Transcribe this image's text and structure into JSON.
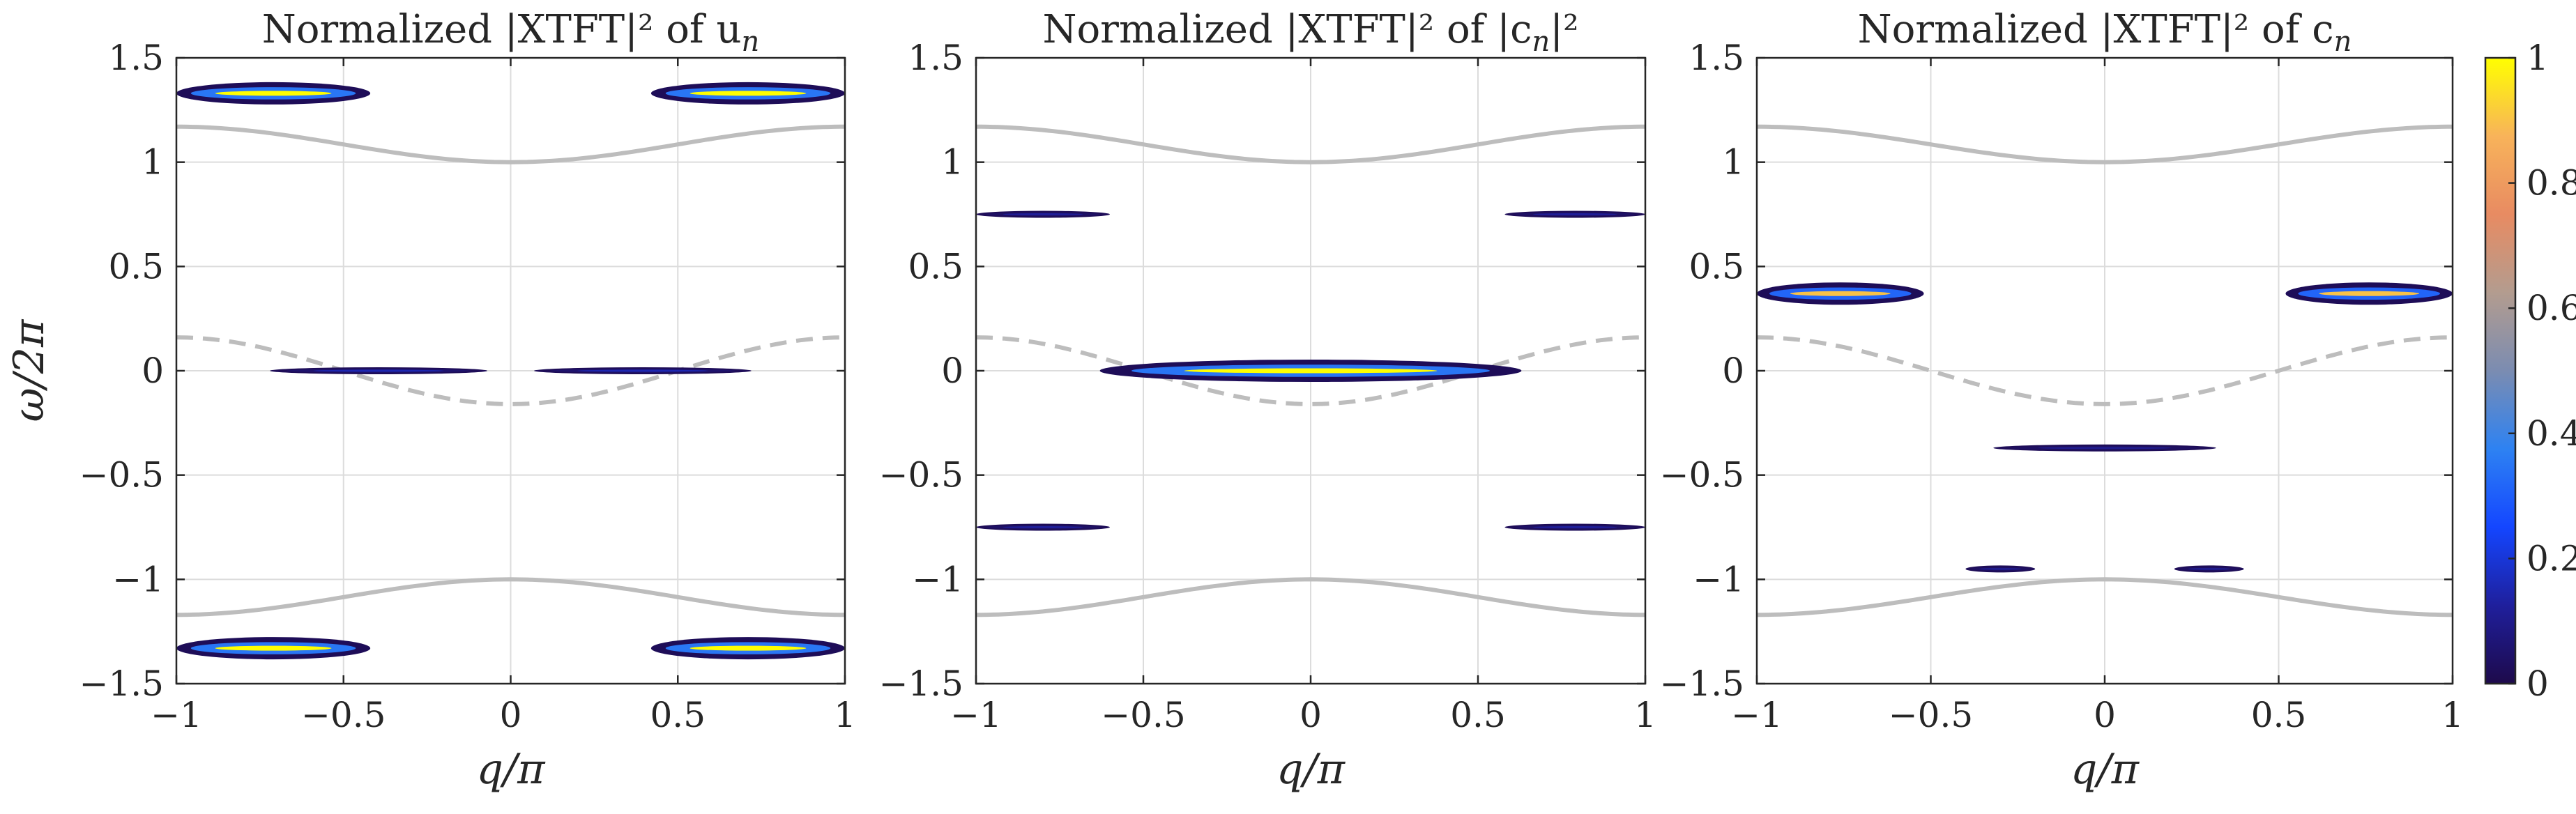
{
  "chart_data": [
    {
      "type": "heatmap",
      "title_text": "Normalized |XTFT|² of u",
      "title_sub": "n",
      "xlabel": "q/π",
      "ylabel": "ω/2π",
      "xlim": [
        -1,
        1
      ],
      "ylim": [
        -1.5,
        1.5
      ],
      "xticks": [
        -1,
        -0.5,
        0,
        0.5,
        1
      ],
      "yticks": [
        -1.5,
        -1,
        -0.5,
        0,
        0.5,
        1,
        1.5
      ],
      "xtick_labels": [
        "−1",
        "−0.5",
        "0",
        "0.5",
        "1"
      ],
      "ytick_labels": [
        "−1.5",
        "−1",
        "−0.5",
        "0",
        "0.5",
        "1",
        "1.5"
      ],
      "grid": true,
      "reference_curves": [
        {
          "name": "upper band",
          "style": "solid",
          "omega_at_q0": 1.0,
          "omega_at_edge": 1.17
        },
        {
          "name": "middle band",
          "style": "dashed",
          "omega_at_q0": -0.16,
          "omega_at_edge": 0.16
        },
        {
          "name": "lower band",
          "style": "solid",
          "omega_at_q0": -1.0,
          "omega_at_edge": -1.17
        }
      ],
      "spectral_features": [
        {
          "q_range": [
            -1.0,
            -0.42
          ],
          "omega": 1.33,
          "peak": 1.0
        },
        {
          "q_range": [
            0.42,
            1.0
          ],
          "omega": 1.33,
          "peak": 1.0
        },
        {
          "q_range": [
            -0.72,
            -0.07
          ],
          "omega": 0.0,
          "peak": 0.15
        },
        {
          "q_range": [
            0.07,
            0.72
          ],
          "omega": 0.0,
          "peak": 0.15
        },
        {
          "q_range": [
            -1.0,
            -0.42
          ],
          "omega": -1.33,
          "peak": 1.0
        },
        {
          "q_range": [
            0.42,
            1.0
          ],
          "omega": -1.33,
          "peak": 1.0
        }
      ]
    },
    {
      "type": "heatmap",
      "title_text": "Normalized |XTFT|² of |c",
      "title_sub": "n",
      "title_after": "|²",
      "xlabel": "q/π",
      "xlim": [
        -1,
        1
      ],
      "ylim": [
        -1.5,
        1.5
      ],
      "xticks": [
        -1,
        -0.5,
        0,
        0.5,
        1
      ],
      "yticks": [
        -1.5,
        -1,
        -0.5,
        0,
        0.5,
        1,
        1.5
      ],
      "xtick_labels": [
        "−1",
        "−0.5",
        "0",
        "0.5",
        "1"
      ],
      "ytick_labels": [
        "−1.5",
        "−1",
        "−0.5",
        "0",
        "0.5",
        "1",
        "1.5"
      ],
      "grid": true,
      "reference_curves": [
        {
          "name": "upper band",
          "style": "solid",
          "omega_at_q0": 1.0,
          "omega_at_edge": 1.17
        },
        {
          "name": "middle band",
          "style": "dashed",
          "omega_at_q0": -0.16,
          "omega_at_edge": 0.16
        },
        {
          "name": "lower band",
          "style": "solid",
          "omega_at_q0": -1.0,
          "omega_at_edge": -1.17
        }
      ],
      "spectral_features": [
        {
          "q_range": [
            -1.0,
            -0.6
          ],
          "omega": 0.75,
          "peak": 0.12
        },
        {
          "q_range": [
            0.58,
            1.0
          ],
          "omega": 0.75,
          "peak": 0.12
        },
        {
          "q_range": [
            -0.63,
            0.63
          ],
          "omega": 0.0,
          "peak": 1.0
        },
        {
          "q_range": [
            -1.0,
            -0.6
          ],
          "omega": -0.75,
          "peak": 0.12
        },
        {
          "q_range": [
            0.58,
            1.0
          ],
          "omega": -0.75,
          "peak": 0.12
        }
      ]
    },
    {
      "type": "heatmap",
      "title_text": "Normalized |XTFT|² of c",
      "title_sub": "n",
      "xlabel": "q/π",
      "xlim": [
        -1,
        1
      ],
      "ylim": [
        -1.5,
        1.5
      ],
      "xticks": [
        -1,
        -0.5,
        0,
        0.5,
        1
      ],
      "yticks": [
        -1.5,
        -1,
        -0.5,
        0,
        0.5,
        1,
        1.5
      ],
      "xtick_labels": [
        "−1",
        "−0.5",
        "0",
        "0.5",
        "1"
      ],
      "ytick_labels": [
        "−1.5",
        "−1",
        "−0.5",
        "0",
        "0.5",
        "1",
        "1.5"
      ],
      "grid": true,
      "reference_curves": [
        {
          "name": "upper band",
          "style": "solid",
          "omega_at_q0": 1.0,
          "omega_at_edge": 1.17
        },
        {
          "name": "middle band",
          "style": "dashed",
          "omega_at_q0": -0.16,
          "omega_at_edge": 0.16
        },
        {
          "name": "lower band",
          "style": "solid",
          "omega_at_q0": -1.0,
          "omega_at_edge": -1.17
        }
      ],
      "spectral_features": [
        {
          "q_range": [
            -1.0,
            -0.52
          ],
          "omega": 0.37,
          "peak": 0.9
        },
        {
          "q_range": [
            0.52,
            1.0
          ],
          "omega": 0.37,
          "peak": 0.9
        },
        {
          "q_range": [
            -0.32,
            0.32
          ],
          "omega": -0.37,
          "peak": 0.1
        },
        {
          "q_range": [
            -0.4,
            -0.2
          ],
          "omega": -0.95,
          "peak": 0.1
        },
        {
          "q_range": [
            0.2,
            0.4
          ],
          "omega": -0.95,
          "peak": 0.1
        }
      ]
    }
  ],
  "colorbar": {
    "range": [
      0,
      1
    ],
    "ticks": [
      0,
      0.2,
      0.4,
      0.6,
      0.8,
      1
    ],
    "tick_labels": [
      "0",
      "0.2",
      "0.4",
      "0.6",
      "0.8",
      "1"
    ],
    "colormap": [
      "#1e0a4b",
      "#1f1f9c",
      "#1446ff",
      "#2e82f2",
      "#7b8cb1",
      "#b39c8f",
      "#e88b62",
      "#f8b35a",
      "#ffff00"
    ]
  }
}
